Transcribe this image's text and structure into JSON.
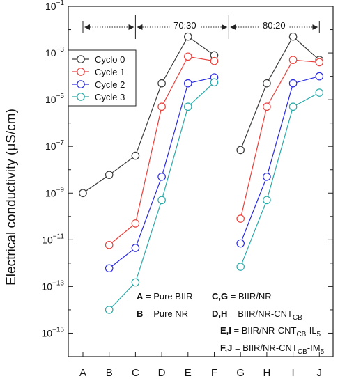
{
  "chart_data": {
    "type": "line",
    "xlabel": "",
    "ylabel": "Electrical conductivity (μS/cm)",
    "yscale": "log",
    "ylim_exp": [
      -16,
      -1
    ],
    "y_tick_exponents": [
      -15,
      -13,
      -11,
      -9,
      -7,
      -5,
      -3,
      -1
    ],
    "categories": [
      "A",
      "B",
      "C",
      "D",
      "E",
      "F",
      "G",
      "H",
      "I",
      "J"
    ],
    "groups": [
      {
        "label": "70:30",
        "from": "C",
        "to": "F",
        "arrow_from": "A",
        "arrow_to": "F"
      },
      {
        "label": "80:20",
        "from": "G",
        "to": "J",
        "arrow_from": "G",
        "arrow_to": "J"
      }
    ],
    "series": [
      {
        "name": "Cyclo 0",
        "color": "#3a3a3a",
        "segments": [
          [
            [
              "A",
              1e-09
            ],
            [
              "B",
              6e-09
            ],
            [
              "C",
              4e-08
            ],
            [
              "D",
              5e-05
            ],
            [
              "E",
              0.005
            ],
            [
              "F",
              0.0008
            ]
          ],
          [
            [
              "G",
              7e-08
            ],
            [
              "H",
              5e-05
            ],
            [
              "I",
              0.005
            ],
            [
              "J",
              0.0005
            ]
          ]
        ]
      },
      {
        "name": "Cycle 1",
        "color": "#e8403c",
        "segments": [
          [
            [
              "B",
              6e-12
            ],
            [
              "C",
              5e-11
            ],
            [
              "D",
              5e-06
            ],
            [
              "E",
              0.0007
            ],
            [
              "F",
              0.00045
            ]
          ],
          [
            [
              "G",
              8e-11
            ],
            [
              "H",
              5e-06
            ],
            [
              "I",
              0.0005
            ],
            [
              "J",
              0.0004
            ]
          ]
        ]
      },
      {
        "name": "Cycle 2",
        "color": "#2b2be0",
        "segments": [
          [
            [
              "B",
              6e-13
            ],
            [
              "C",
              4.5e-12
            ],
            [
              "D",
              5e-09
            ],
            [
              "E",
              5e-05
            ],
            [
              "F",
              9e-05
            ]
          ],
          [
            [
              "G",
              7e-12
            ],
            [
              "H",
              5e-09
            ],
            [
              "I",
              5e-05
            ],
            [
              "J",
              0.0001
            ]
          ]
        ]
      },
      {
        "name": "Cycle 3",
        "color": "#2aa9a9",
        "segments": [
          [
            [
              "B",
              1e-14
            ],
            [
              "C",
              1.5e-13
            ],
            [
              "D",
              5e-10
            ],
            [
              "E",
              5e-06
            ],
            [
              "F",
              5.5e-05
            ]
          ],
          [
            [
              "G",
              7e-13
            ],
            [
              "H",
              5e-10
            ],
            [
              "I",
              5e-06
            ],
            [
              "J",
              2e-05
            ]
          ]
        ]
      }
    ],
    "legend_position": "top-left",
    "notes": [
      {
        "key": "A",
        "text": "= Pure BIIR"
      },
      {
        "key": "B",
        "text": "= Pure NR"
      },
      {
        "key": "C,G",
        "text": "= BIIR/NR"
      },
      {
        "key": "D,H",
        "text": "= BIIR/NR-CNT",
        "sub": "CB"
      },
      {
        "key": "E,I",
        "text": "= BIIR/NR-CNT",
        "sub": "CB",
        "text2": "-IL",
        "sub2": "5"
      },
      {
        "key": "F,J",
        "text": "= BIIR/NR-CNT",
        "sub": "CB",
        "text2": "-IM",
        "sub2": "5"
      }
    ]
  }
}
